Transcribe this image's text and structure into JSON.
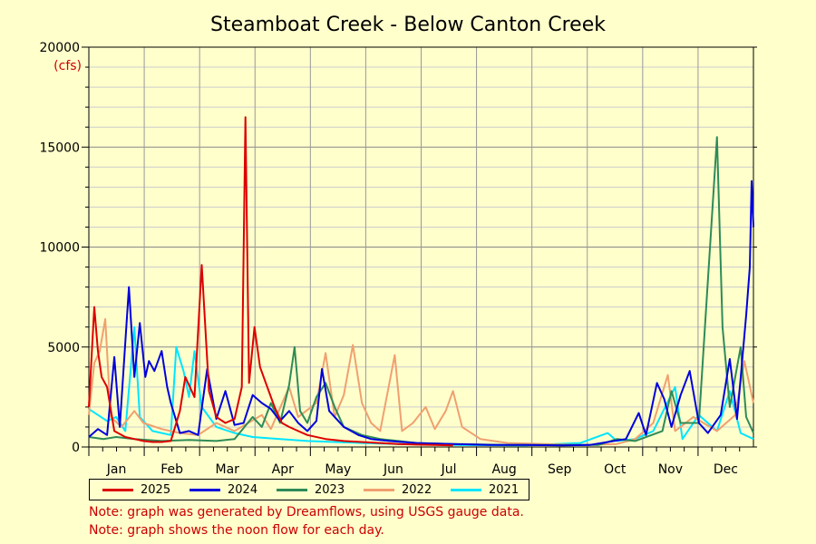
{
  "chart_data": {
    "type": "line",
    "title": "Steamboat Creek - Below Canton Creek",
    "ylabel": "(cfs)",
    "ylim": [
      0,
      20000
    ],
    "yticks": [
      "0",
      "5000",
      "10000",
      "15000",
      "20000"
    ],
    "months": [
      "Jan",
      "Feb",
      "Mar",
      "Apr",
      "May",
      "Jun",
      "Jul",
      "Aug",
      "Sep",
      "Oct",
      "Nov",
      "Dec"
    ],
    "xlim": [
      0,
      365
    ],
    "grid": true,
    "legend_position": "bottom",
    "series": [
      {
        "name": "2021",
        "color": "#00e5ff",
        "points": [
          [
            0,
            1900
          ],
          [
            5,
            1600
          ],
          [
            10,
            1300
          ],
          [
            15,
            1500
          ],
          [
            20,
            800
          ],
          [
            25,
            6000
          ],
          [
            28,
            1500
          ],
          [
            35,
            800
          ],
          [
            45,
            600
          ],
          [
            48,
            5000
          ],
          [
            52,
            3800
          ],
          [
            55,
            2500
          ],
          [
            58,
            4800
          ],
          [
            62,
            2000
          ],
          [
            70,
            1000
          ],
          [
            80,
            700
          ],
          [
            90,
            500
          ],
          [
            105,
            400
          ],
          [
            120,
            300
          ],
          [
            135,
            250
          ],
          [
            150,
            200
          ],
          [
            170,
            150
          ],
          [
            200,
            100
          ],
          [
            240,
            80
          ],
          [
            270,
            200
          ],
          [
            285,
            700
          ],
          [
            290,
            300
          ],
          [
            300,
            400
          ],
          [
            310,
            800
          ],
          [
            322,
            3000
          ],
          [
            326,
            400
          ],
          [
            335,
            1600
          ],
          [
            345,
            800
          ],
          [
            352,
            2800
          ],
          [
            358,
            700
          ],
          [
            365,
            400
          ]
        ]
      },
      {
        "name": "2022",
        "color": "#f0a070",
        "points": [
          [
            0,
            1600
          ],
          [
            3,
            4200
          ],
          [
            6,
            4800
          ],
          [
            9,
            6400
          ],
          [
            12,
            1500
          ],
          [
            18,
            1000
          ],
          [
            25,
            1800
          ],
          [
            30,
            1200
          ],
          [
            40,
            900
          ],
          [
            50,
            700
          ],
          [
            60,
            600
          ],
          [
            70,
            1200
          ],
          [
            80,
            800
          ],
          [
            95,
            1600
          ],
          [
            100,
            900
          ],
          [
            110,
            3000
          ],
          [
            115,
            1500
          ],
          [
            125,
            2200
          ],
          [
            130,
            4700
          ],
          [
            135,
            1500
          ],
          [
            140,
            2600
          ],
          [
            145,
            5100
          ],
          [
            150,
            2200
          ],
          [
            155,
            1200
          ],
          [
            160,
            800
          ],
          [
            168,
            4600
          ],
          [
            172,
            800
          ],
          [
            178,
            1200
          ],
          [
            185,
            2000
          ],
          [
            190,
            900
          ],
          [
            196,
            1800
          ],
          [
            200,
            2800
          ],
          [
            205,
            1000
          ],
          [
            215,
            400
          ],
          [
            230,
            200
          ],
          [
            250,
            150
          ],
          [
            270,
            100
          ],
          [
            290,
            150
          ],
          [
            300,
            400
          ],
          [
            310,
            1200
          ],
          [
            318,
            3600
          ],
          [
            322,
            800
          ],
          [
            332,
            1500
          ],
          [
            345,
            800
          ],
          [
            355,
            1600
          ],
          [
            360,
            4300
          ],
          [
            365,
            2200
          ]
        ]
      },
      {
        "name": "2023",
        "color": "#2e8b57",
        "points": [
          [
            0,
            500
          ],
          [
            8,
            400
          ],
          [
            15,
            500
          ],
          [
            25,
            400
          ],
          [
            40,
            300
          ],
          [
            55,
            350
          ],
          [
            70,
            300
          ],
          [
            80,
            400
          ],
          [
            90,
            1500
          ],
          [
            95,
            1000
          ],
          [
            100,
            2200
          ],
          [
            105,
            1200
          ],
          [
            110,
            3100
          ],
          [
            113,
            5000
          ],
          [
            116,
            1800
          ],
          [
            120,
            1200
          ],
          [
            125,
            2500
          ],
          [
            130,
            3200
          ],
          [
            135,
            2000
          ],
          [
            140,
            1000
          ],
          [
            150,
            600
          ],
          [
            160,
            400
          ],
          [
            170,
            300
          ],
          [
            180,
            200
          ],
          [
            200,
            150
          ],
          [
            230,
            100
          ],
          [
            260,
            100
          ],
          [
            280,
            100
          ],
          [
            290,
            400
          ],
          [
            300,
            300
          ],
          [
            315,
            800
          ],
          [
            320,
            2800
          ],
          [
            325,
            1200
          ],
          [
            335,
            1200
          ],
          [
            345,
            15500
          ],
          [
            348,
            6000
          ],
          [
            352,
            2000
          ],
          [
            358,
            5000
          ],
          [
            361,
            1500
          ],
          [
            365,
            700
          ]
        ]
      },
      {
        "name": "2024",
        "color": "#0000dd",
        "points": [
          [
            0,
            500
          ],
          [
            5,
            900
          ],
          [
            10,
            600
          ],
          [
            14,
            4500
          ],
          [
            17,
            1000
          ],
          [
            22,
            8000
          ],
          [
            25,
            3500
          ],
          [
            28,
            6200
          ],
          [
            31,
            3500
          ],
          [
            33,
            4300
          ],
          [
            36,
            3800
          ],
          [
            40,
            4800
          ],
          [
            43,
            3000
          ],
          [
            45,
            2200
          ],
          [
            50,
            700
          ],
          [
            55,
            800
          ],
          [
            60,
            600
          ],
          [
            65,
            3900
          ],
          [
            70,
            1400
          ],
          [
            75,
            2800
          ],
          [
            80,
            1100
          ],
          [
            85,
            1200
          ],
          [
            90,
            2600
          ],
          [
            95,
            2200
          ],
          [
            100,
            1900
          ],
          [
            105,
            1300
          ],
          [
            110,
            1800
          ],
          [
            115,
            1200
          ],
          [
            120,
            800
          ],
          [
            125,
            1300
          ],
          [
            128,
            3900
          ],
          [
            132,
            1800
          ],
          [
            140,
            1000
          ],
          [
            148,
            600
          ],
          [
            155,
            400
          ],
          [
            165,
            300
          ],
          [
            180,
            200
          ],
          [
            200,
            150
          ],
          [
            220,
            100
          ],
          [
            240,
            100
          ],
          [
            260,
            80
          ],
          [
            275,
            100
          ],
          [
            285,
            250
          ],
          [
            295,
            400
          ],
          [
            302,
            1700
          ],
          [
            306,
            600
          ],
          [
            312,
            3200
          ],
          [
            316,
            2400
          ],
          [
            320,
            1000
          ],
          [
            325,
            2600
          ],
          [
            330,
            3800
          ],
          [
            335,
            1200
          ],
          [
            340,
            700
          ],
          [
            347,
            1600
          ],
          [
            352,
            4400
          ],
          [
            356,
            1400
          ],
          [
            361,
            6600
          ],
          [
            363,
            9000
          ],
          [
            364,
            13300
          ],
          [
            365,
            11000
          ]
        ]
      },
      {
        "name": "2025",
        "color": "#dd0000",
        "points": [
          [
            0,
            2000
          ],
          [
            3,
            7000
          ],
          [
            5,
            4800
          ],
          [
            7,
            3500
          ],
          [
            10,
            3000
          ],
          [
            14,
            800
          ],
          [
            20,
            500
          ],
          [
            25,
            400
          ],
          [
            30,
            300
          ],
          [
            35,
            250
          ],
          [
            40,
            250
          ],
          [
            45,
            300
          ],
          [
            50,
            1800
          ],
          [
            53,
            3500
          ],
          [
            58,
            2500
          ],
          [
            62,
            9100
          ],
          [
            66,
            2800
          ],
          [
            70,
            1500
          ],
          [
            75,
            1200
          ],
          [
            80,
            1400
          ],
          [
            84,
            3000
          ],
          [
            86,
            16500
          ],
          [
            88,
            3200
          ],
          [
            91,
            6000
          ],
          [
            94,
            4000
          ],
          [
            98,
            3000
          ],
          [
            102,
            2000
          ],
          [
            106,
            1200
          ],
          [
            110,
            1000
          ],
          [
            115,
            800
          ],
          [
            120,
            600
          ],
          [
            130,
            400
          ],
          [
            140,
            300
          ],
          [
            150,
            250
          ],
          [
            160,
            200
          ],
          [
            170,
            150
          ],
          [
            180,
            120
          ],
          [
            190,
            100
          ],
          [
            200,
            80
          ]
        ]
      }
    ]
  },
  "legend": {
    "items": [
      {
        "label": "2025",
        "color": "#dd0000"
      },
      {
        "label": "2024",
        "color": "#0000dd"
      },
      {
        "label": "2023",
        "color": "#2e8b57"
      },
      {
        "label": "2022",
        "color": "#f0a070"
      },
      {
        "label": "2021",
        "color": "#00e5ff"
      }
    ]
  },
  "notes": {
    "line1": "Note: graph was generated by Dreamflows, using USGS gauge data.",
    "line2": "Note: graph shows the noon flow for each day."
  },
  "colors": {
    "background": "#ffffcc",
    "note_text": "#cc0000",
    "unit_text": "#cc0000"
  }
}
